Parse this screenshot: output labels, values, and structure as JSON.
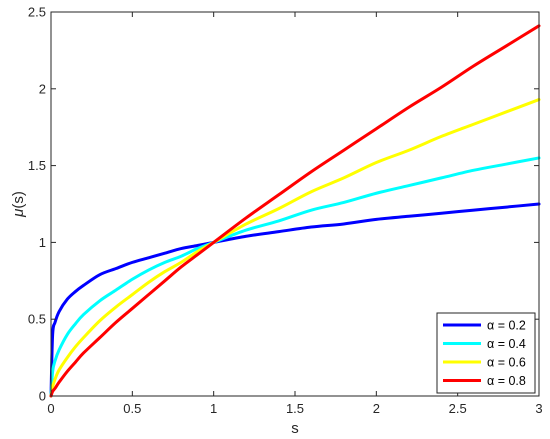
{
  "chart_data": {
    "type": "line",
    "xlabel": "s",
    "ylabel_symbol": "μ",
    "ylabel_suffix": "(s)",
    "xlim": [
      0,
      3
    ],
    "ylim": [
      0,
      2.5
    ],
    "x_ticks": [
      0,
      0.5,
      1,
      1.5,
      2,
      2.5,
      3
    ],
    "x_tick_labels": [
      "0",
      "0.5",
      "1",
      "1.5",
      "2",
      "2.5",
      "3"
    ],
    "y_ticks": [
      0,
      0.5,
      1,
      1.5,
      2,
      2.5
    ],
    "y_tick_labels": [
      "0",
      "0.5",
      "1",
      "1.5",
      "2",
      "2.5"
    ],
    "grid": false,
    "legend_position": "bottom-right",
    "x": [
      0,
      0.01,
      0.025,
      0.05,
      0.1,
      0.15,
      0.2,
      0.3,
      0.4,
      0.5,
      0.6,
      0.7,
      0.8,
      0.9,
      1.0,
      1.2,
      1.4,
      1.6,
      1.8,
      2.0,
      2.2,
      2.4,
      2.6,
      2.8,
      3.0
    ],
    "series": [
      {
        "name": "α = 0.2",
        "color": "#0000ff",
        "values": [
          0,
          0.4,
          0.48,
          0.55,
          0.63,
          0.68,
          0.72,
          0.79,
          0.83,
          0.87,
          0.9,
          0.93,
          0.96,
          0.98,
          1.0,
          1.04,
          1.07,
          1.1,
          1.12,
          1.15,
          1.17,
          1.19,
          1.21,
          1.23,
          1.25
        ]
      },
      {
        "name": "α = 0.4",
        "color": "#00ffff",
        "values": [
          0,
          0.16,
          0.23,
          0.3,
          0.4,
          0.47,
          0.53,
          0.62,
          0.69,
          0.76,
          0.82,
          0.87,
          0.91,
          0.96,
          1.0,
          1.08,
          1.14,
          1.21,
          1.26,
          1.32,
          1.37,
          1.42,
          1.47,
          1.51,
          1.55
        ]
      },
      {
        "name": "α = 0.6",
        "color": "#ffff00",
        "values": [
          0,
          0.06,
          0.11,
          0.17,
          0.25,
          0.32,
          0.38,
          0.49,
          0.58,
          0.66,
          0.74,
          0.81,
          0.87,
          0.94,
          1.0,
          1.12,
          1.22,
          1.33,
          1.42,
          1.52,
          1.6,
          1.69,
          1.77,
          1.85,
          1.93
        ]
      },
      {
        "name": "α = 0.8",
        "color": "#ff0000",
        "values": [
          0,
          0.03,
          0.05,
          0.09,
          0.16,
          0.22,
          0.28,
          0.38,
          0.48,
          0.57,
          0.66,
          0.75,
          0.84,
          0.92,
          1.0,
          1.16,
          1.31,
          1.46,
          1.6,
          1.74,
          1.88,
          2.01,
          2.15,
          2.28,
          2.41
        ]
      }
    ]
  }
}
